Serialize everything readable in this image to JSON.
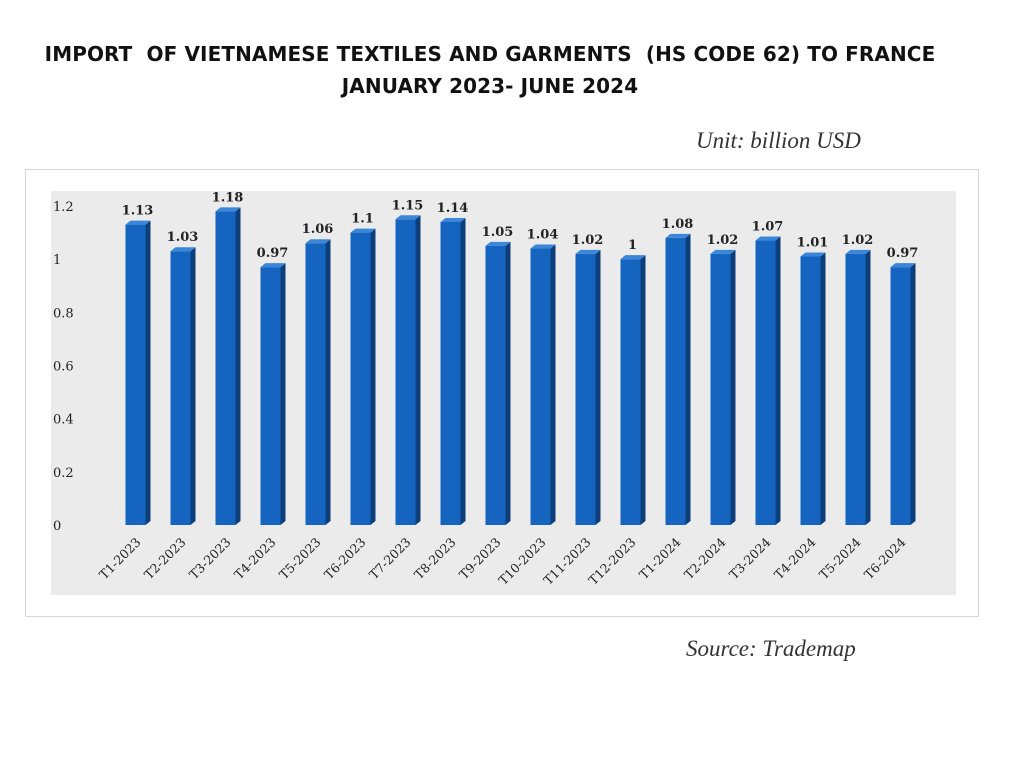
{
  "title_line1": "IMPORT  OF VIETNAMESE TEXTILES AND GARMENTS  (HS CODE 62) TO FRANCE",
  "title_line2": "JANUARY 2023- JUNE 2024",
  "unit_note": "Unit: billion USD",
  "source_note": "Source: Trademap",
  "chart_data": {
    "type": "bar",
    "title": "IMPORT  OF VIETNAMESE TEXTILES AND GARMENTS  (HS CODE 62) TO FRANCE JANUARY 2023- JUNE 2024",
    "xlabel": "",
    "ylabel": "",
    "ylim": [
      0,
      1.2
    ],
    "yticks": [
      0,
      0.2,
      0.4,
      0.6,
      0.8,
      1,
      1.2
    ],
    "grid": false,
    "legend": "none",
    "bar_color": "#1565C0",
    "bar_side_color": "#0D3E7A",
    "bar_top_color": "#3A86D8",
    "plot_background": "#EBEBEB",
    "categories": [
      "T1-2023",
      "T2-2023",
      "T3-2023",
      "T4-2023",
      "T5-2023",
      "T6-2023",
      "T7-2023",
      "T8-2023",
      "T9-2023",
      "T10-2023",
      "T11-2023",
      "T12-2023",
      "T1-2024",
      "T2-2024",
      "T3-2024",
      "T4-2024",
      "T5-2024",
      "T6-2024"
    ],
    "values": [
      1.13,
      1.03,
      1.18,
      0.97,
      1.06,
      1.1,
      1.15,
      1.14,
      1.05,
      1.04,
      1.02,
      1,
      1.08,
      1.02,
      1.07,
      1.01,
      1.02,
      0.97
    ]
  }
}
